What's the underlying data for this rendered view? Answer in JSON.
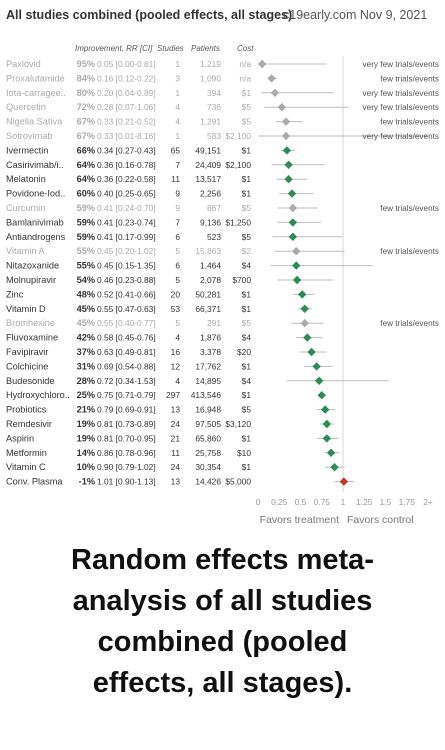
{
  "header": {
    "title": "All studies combined (pooled effects, all stages)",
    "source": "c19early.com Nov 9, 2021"
  },
  "caption": {
    "lines": [
      "Random effects meta-",
      "analysis of all studies",
      "combined (pooled",
      "effects, all stages)."
    ]
  },
  "colors": {
    "significant": "#2e8b57",
    "few_trials": "#aaaaaa",
    "harm": "#c0392b",
    "dim_text": "#aaaaaa",
    "text": "#333333"
  },
  "chart_data": {
    "type": "forest",
    "columns": [
      "",
      "Improvement, RR [CI]",
      "Studies",
      "Patients",
      "Cost"
    ],
    "x_ticks": [
      "0",
      "0.25",
      "0.5",
      "0.75",
      "1",
      "1.25",
      "1.5",
      "1.75",
      "2+"
    ],
    "xlim": [
      0,
      2
    ],
    "favors_left": "Favors treatment",
    "favors_right": "Favors control",
    "rows": [
      {
        "name": "Paxlovid",
        "imp": "95%",
        "rr": 0.05,
        "lo": 0.0,
        "hi": 0.81,
        "rr_text": "0.05 [0.00-0.81]",
        "studies": "1",
        "patients": "1,219",
        "cost": "n/a",
        "note": "very few trials/events",
        "dim": true
      },
      {
        "name": "Proxalutamide",
        "imp": "84%",
        "rr": 0.16,
        "lo": 0.12,
        "hi": 0.22,
        "rr_text": "0.16 [0.12-0.22]",
        "studies": "3",
        "patients": "1,090",
        "cost": "n/a",
        "note": "few trials/events",
        "dim": true
      },
      {
        "name": "Iota-carragee..",
        "imp": "80%",
        "rr": 0.2,
        "lo": 0.04,
        "hi": 0.89,
        "rr_text": "0.20 [0.04-0.89]",
        "studies": "1",
        "patients": "394",
        "cost": "$1",
        "note": "very few trials/events",
        "dim": true
      },
      {
        "name": "Quercetin",
        "imp": "72%",
        "rr": 0.28,
        "lo": 0.07,
        "hi": 1.06,
        "rr_text": "0.28 [0.07-1.06]",
        "studies": "4",
        "patients": "736",
        "cost": "$5",
        "note": "very few trials/events",
        "dim": true
      },
      {
        "name": "Nigella Sativa",
        "imp": "67%",
        "rr": 0.33,
        "lo": 0.21,
        "hi": 0.52,
        "rr_text": "0.33 [0.21-0.52]",
        "studies": "4",
        "patients": "1,291",
        "cost": "$5",
        "note": "few trials/events",
        "dim": true
      },
      {
        "name": "Sotrovimab",
        "imp": "67%",
        "rr": 0.33,
        "lo": 0.01,
        "hi": 8.16,
        "rr_text": "0.33 [0.01-8.16]",
        "studies": "1",
        "patients": "583",
        "cost": "$2,100",
        "note": "very few trials/events",
        "dim": true
      },
      {
        "name": "Ivermectin",
        "imp": "66%",
        "rr": 0.34,
        "lo": 0.27,
        "hi": 0.43,
        "rr_text": "0.34 [0.27-0.43]",
        "studies": "65",
        "patients": "49,151",
        "cost": "$1",
        "note": "",
        "dim": false
      },
      {
        "name": "Casirivimab/i..",
        "imp": "64%",
        "rr": 0.36,
        "lo": 0.16,
        "hi": 0.78,
        "rr_text": "0.36 [0.16-0.78]",
        "studies": "7",
        "patients": "24,409",
        "cost": "$2,100",
        "note": "",
        "dim": false
      },
      {
        "name": "Melatonin",
        "imp": "64%",
        "rr": 0.36,
        "lo": 0.22,
        "hi": 0.58,
        "rr_text": "0.36 [0.22-0.58]",
        "studies": "11",
        "patients": "13,517",
        "cost": "$1",
        "note": "",
        "dim": false
      },
      {
        "name": "Povidone-Iod..",
        "imp": "60%",
        "rr": 0.4,
        "lo": 0.25,
        "hi": 0.65,
        "rr_text": "0.40 [0.25-0.65]",
        "studies": "9",
        "patients": "2,256",
        "cost": "$1",
        "note": "",
        "dim": false
      },
      {
        "name": "Curcumin",
        "imp": "59%",
        "rr": 0.41,
        "lo": 0.24,
        "hi": 0.7,
        "rr_text": "0.41 [0.24-0.70]",
        "studies": "9",
        "patients": "867",
        "cost": "$5",
        "note": "few trials/events",
        "dim": true
      },
      {
        "name": "Bamlanivimab",
        "imp": "59%",
        "rr": 0.41,
        "lo": 0.23,
        "hi": 0.74,
        "rr_text": "0.41 [0.23-0.74]",
        "studies": "7",
        "patients": "9,136",
        "cost": "$1,250",
        "note": "",
        "dim": false
      },
      {
        "name": "Antiandrogens",
        "imp": "59%",
        "rr": 0.41,
        "lo": 0.17,
        "hi": 0.99,
        "rr_text": "0.41 [0.17-0.99]",
        "studies": "6",
        "patients": "523",
        "cost": "$5",
        "note": "",
        "dim": false
      },
      {
        "name": "Vitamin A",
        "imp": "55%",
        "rr": 0.45,
        "lo": 0.2,
        "hi": 1.02,
        "rr_text": "0.45 [0.20-1.02]",
        "studies": "5",
        "patients": "15,863",
        "cost": "$2",
        "note": "few trials/events",
        "dim": true
      },
      {
        "name": "Nitazoxanide",
        "imp": "55%",
        "rr": 0.45,
        "lo": 0.15,
        "hi": 1.35,
        "rr_text": "0.45 [0.15-1.35]",
        "studies": "6",
        "patients": "1,464",
        "cost": "$4",
        "note": "",
        "dim": false
      },
      {
        "name": "Molnupiravir",
        "imp": "54%",
        "rr": 0.46,
        "lo": 0.23,
        "hi": 0.88,
        "rr_text": "0.46 [0.23-0.88]",
        "studies": "5",
        "patients": "2,078",
        "cost": "$700",
        "note": "",
        "dim": false
      },
      {
        "name": "Zinc",
        "imp": "48%",
        "rr": 0.52,
        "lo": 0.41,
        "hi": 0.66,
        "rr_text": "0.52 [0.41-0.66]",
        "studies": "20",
        "patients": "50,281",
        "cost": "$1",
        "note": "",
        "dim": false
      },
      {
        "name": "Vitamin D",
        "imp": "45%",
        "rr": 0.55,
        "lo": 0.47,
        "hi": 0.63,
        "rr_text": "0.55 [0.47-0.63]",
        "studies": "53",
        "patients": "66,371",
        "cost": "$1",
        "note": "",
        "dim": false
      },
      {
        "name": "Bromhexine",
        "imp": "45%",
        "rr": 0.55,
        "lo": 0.4,
        "hi": 0.77,
        "rr_text": "0.55 [0.40-0.77]",
        "studies": "5",
        "patients": "291",
        "cost": "$5",
        "note": "few trials/events",
        "dim": true
      },
      {
        "name": "Fluvoxamine",
        "imp": "42%",
        "rr": 0.58,
        "lo": 0.45,
        "hi": 0.76,
        "rr_text": "0.58 [0.45-0.76]",
        "studies": "4",
        "patients": "1,876",
        "cost": "$4",
        "note": "",
        "dim": false
      },
      {
        "name": "Favipiravir",
        "imp": "37%",
        "rr": 0.63,
        "lo": 0.49,
        "hi": 0.81,
        "rr_text": "0.63 [0.49-0.81]",
        "studies": "16",
        "patients": "3,378",
        "cost": "$20",
        "note": "",
        "dim": false
      },
      {
        "name": "Colchicine",
        "imp": "31%",
        "rr": 0.69,
        "lo": 0.54,
        "hi": 0.88,
        "rr_text": "0.69 [0.54-0.88]",
        "studies": "12",
        "patients": "17,762",
        "cost": "$1",
        "note": "",
        "dim": false
      },
      {
        "name": "Budesonide",
        "imp": "28%",
        "rr": 0.72,
        "lo": 0.34,
        "hi": 1.53,
        "rr_text": "0.72 [0.34-1.53]",
        "studies": "4",
        "patients": "14,895",
        "cost": "$4",
        "note": "",
        "dim": false
      },
      {
        "name": "Hydroxychloro..",
        "imp": "25%",
        "rr": 0.75,
        "lo": 0.71,
        "hi": 0.79,
        "rr_text": "0.75 [0.71-0.79]",
        "studies": "297",
        "patients": "413,546",
        "cost": "$1",
        "note": "",
        "dim": false
      },
      {
        "name": "Probiotics",
        "imp": "21%",
        "rr": 0.79,
        "lo": 0.69,
        "hi": 0.91,
        "rr_text": "0.79 [0.69-0.91]",
        "studies": "13",
        "patients": "16,948",
        "cost": "$5",
        "note": "",
        "dim": false
      },
      {
        "name": "Remdesivir",
        "imp": "19%",
        "rr": 0.81,
        "lo": 0.73,
        "hi": 0.89,
        "rr_text": "0.81 [0.73-0.89]",
        "studies": "24",
        "patients": "97,505",
        "cost": "$3,120",
        "note": "",
        "dim": false
      },
      {
        "name": "Aspirin",
        "imp": "19%",
        "rr": 0.81,
        "lo": 0.7,
        "hi": 0.95,
        "rr_text": "0.81 [0.70-0.95]",
        "studies": "21",
        "patients": "65,860",
        "cost": "$1",
        "note": "",
        "dim": false
      },
      {
        "name": "Metformin",
        "imp": "14%",
        "rr": 0.86,
        "lo": 0.78,
        "hi": 0.96,
        "rr_text": "0.86 [0.78-0.96]",
        "studies": "11",
        "patients": "25,758",
        "cost": "$10",
        "note": "",
        "dim": false
      },
      {
        "name": "Vitamin C",
        "imp": "10%",
        "rr": 0.9,
        "lo": 0.79,
        "hi": 1.02,
        "rr_text": "0.90 [0.79-1.02]",
        "studies": "24",
        "patients": "30,354",
        "cost": "$1",
        "note": "",
        "dim": false
      },
      {
        "name": "Conv. Plasma",
        "imp": "-1%",
        "rr": 1.01,
        "lo": 0.9,
        "hi": 1.13,
        "rr_text": "1.01 [0.90-1.13]",
        "studies": "13",
        "patients": "14,426",
        "cost": "$5,000",
        "note": "",
        "dim": false,
        "harm": true
      }
    ]
  }
}
